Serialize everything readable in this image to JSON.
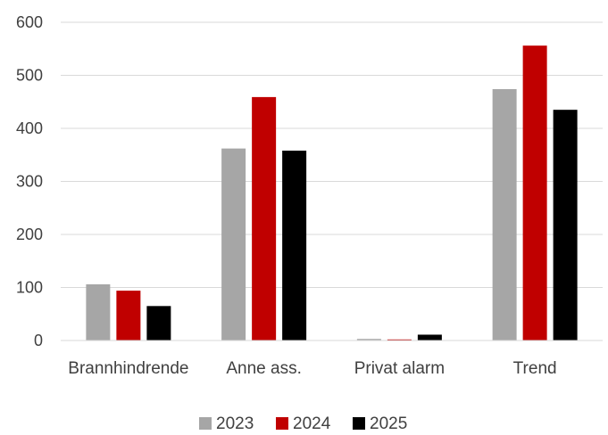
{
  "chart_data": {
    "type": "bar",
    "categories": [
      "Brannhindrende",
      "Anne ass.",
      "Privat alarm",
      "Trend"
    ],
    "series": [
      {
        "name": "2023",
        "color": "#a6a6a6",
        "values": [
          106,
          362,
          3,
          474
        ]
      },
      {
        "name": "2024",
        "color": "#c00000",
        "values": [
          94,
          459,
          2,
          556
        ]
      },
      {
        "name": "2025",
        "color": "#000000",
        "values": [
          65,
          358,
          11,
          435
        ]
      }
    ],
    "yticks": [
      "0",
      "100",
      "200",
      "300",
      "400",
      "500",
      "600"
    ],
    "ylim": [
      0,
      600
    ],
    "grid": true,
    "legend_position": "bottom"
  }
}
